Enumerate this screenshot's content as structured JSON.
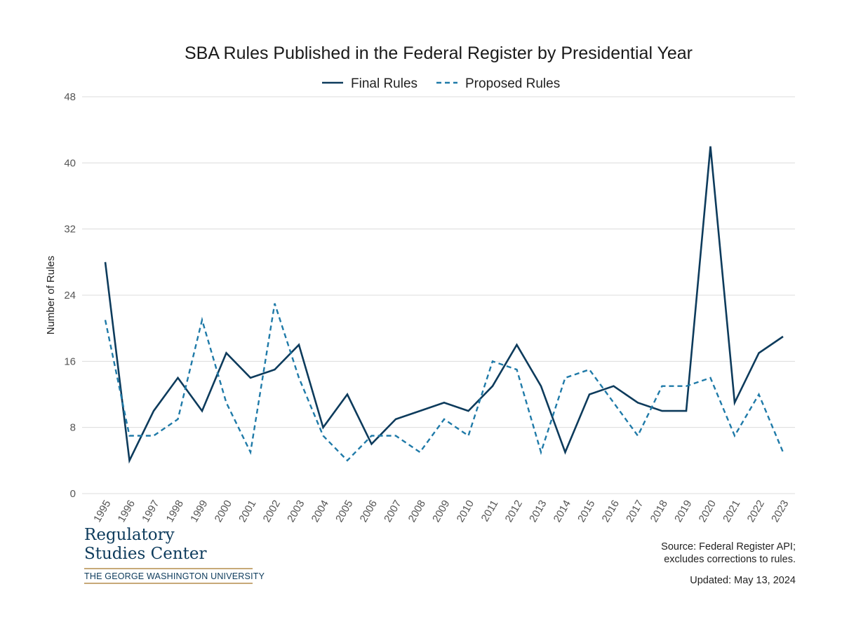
{
  "chart_data": {
    "type": "line",
    "title": "SBA Rules Published in the Federal Register by Presidential Year",
    "xlabel": "",
    "ylabel": "Number of Rules",
    "ylim": [
      0,
      48
    ],
    "yticks": [
      0,
      8,
      16,
      24,
      32,
      40,
      48
    ],
    "grid": true,
    "legend_position": "top-center",
    "categories": [
      "1995",
      "1996",
      "1997",
      "1998",
      "1999",
      "2000",
      "2001",
      "2002",
      "2003",
      "2004",
      "2005",
      "2006",
      "2007",
      "2008",
      "2009",
      "2010",
      "2011",
      "2012",
      "2013",
      "2014",
      "2015",
      "2016",
      "2017",
      "2018",
      "2019",
      "2020",
      "2021",
      "2022",
      "2023"
    ],
    "series": [
      {
        "name": "Final Rules",
        "style": "solid",
        "color": "#0d3b5c",
        "values": [
          28,
          4,
          10,
          14,
          10,
          17,
          14,
          15,
          18,
          8,
          12,
          6,
          9,
          10,
          11,
          10,
          13,
          18,
          13,
          5,
          12,
          13,
          11,
          10,
          10,
          42,
          11,
          17,
          19
        ]
      },
      {
        "name": "Proposed Rules",
        "style": "dashed",
        "color": "#1f7aa8",
        "values": [
          21,
          7,
          7,
          9,
          21,
          11,
          5,
          23,
          14,
          7,
          4,
          7,
          7,
          5,
          9,
          7,
          16,
          15,
          5,
          14,
          15,
          11,
          7,
          13,
          13,
          14,
          7,
          12,
          5
        ]
      }
    ]
  },
  "branding": {
    "line1": "Regulatory",
    "line2": "Studies Center",
    "sub": "THE GEORGE WASHINGTON UNIVERSITY"
  },
  "footer": {
    "source_line1": "Source: Federal Register API;",
    "source_line2": "excludes corrections to rules.",
    "updated": "Updated: May 13, 2024"
  }
}
